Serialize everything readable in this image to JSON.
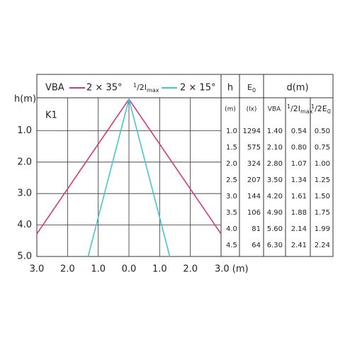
{
  "chart_data": {
    "type": "line",
    "axis_label": "h(m)",
    "label": "K1",
    "legend_title": "VBA",
    "legend_note": {
      "pre": "1",
      "main": "/2I",
      "sub": "max"
    },
    "x": [
      -1.33,
      0,
      1.33
    ],
    "series": [
      {
        "name": "2 × 35°",
        "color": "#d23a7e",
        "x": [
          -3,
          0,
          3
        ],
        "values": [
          4.28,
          0,
          4.28
        ]
      },
      {
        "name": "2 × 15°",
        "color": "#45c6d6",
        "x": [
          -1.33,
          0,
          1.33
        ],
        "values": [
          5,
          0,
          5
        ]
      }
    ],
    "xlim": [
      -3,
      3
    ],
    "ylim": [
      0,
      5
    ],
    "xticks": [
      {
        "value": -3,
        "label": "3.0"
      },
      {
        "value": -2,
        "label": "2.0"
      },
      {
        "value": -1,
        "label": "1.0"
      },
      {
        "value": 0,
        "label": "0.0"
      },
      {
        "value": 1,
        "label": "1.0"
      },
      {
        "value": 2,
        "label": "2.0"
      },
      {
        "value": 3,
        "label": "3.0 (m)"
      }
    ],
    "yticks": [
      {
        "value": 1,
        "label": "1.0"
      },
      {
        "value": 2,
        "label": "2.0"
      },
      {
        "value": 3,
        "label": "3.0"
      },
      {
        "value": 4,
        "label": "4.0"
      },
      {
        "value": 5,
        "label": "5.0"
      }
    ],
    "grid": true
  },
  "table": {
    "headers": [
      "h",
      {
        "main": "E",
        "sub": "0"
      },
      "d(m)"
    ],
    "units": [
      "(m)",
      "(lx)",
      "VBA",
      {
        "pre": "1",
        "main": "/2I",
        "sub": "max"
      },
      {
        "pre": "1",
        "main": "/2E",
        "sub": "0"
      }
    ],
    "rows": [
      [
        "1.0",
        "1294",
        "1.40",
        "0.54",
        "0.50"
      ],
      [
        "1.5",
        "575",
        "2.10",
        "0.80",
        "0.75"
      ],
      [
        "2.0",
        "324",
        "2.80",
        "1.07",
        "1.00"
      ],
      [
        "2.5",
        "207",
        "3.50",
        "1.34",
        "1.25"
      ],
      [
        "3.0",
        "144",
        "4.20",
        "1.61",
        "1.50"
      ],
      [
        "3.5",
        "106",
        "4.90",
        "1.88",
        "1.75"
      ],
      [
        "4.0",
        "81",
        "5.60",
        "2.14",
        "1.99"
      ],
      [
        "4.5",
        "64",
        "6.30",
        "2.41",
        "2.24"
      ]
    ]
  }
}
